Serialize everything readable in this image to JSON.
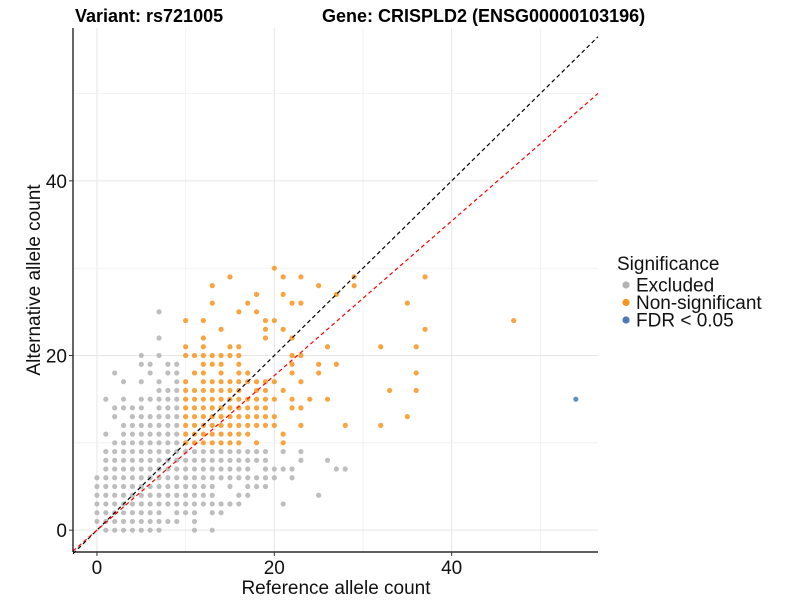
{
  "chart_data": {
    "type": "scatter",
    "title_left": "Variant: rs721005",
    "title_right": "Gene: CRISPLD2 (ENSG00000103196)",
    "xlabel": "Reference allele count",
    "ylabel": "Alternative allele count",
    "xlim": [
      -2.7,
      56.5
    ],
    "ylim": [
      -2.5,
      57.5
    ],
    "xticks": [
      0,
      20,
      40
    ],
    "yticks": [
      0,
      20,
      40
    ],
    "grid": true,
    "reference_lines": [
      {
        "name": "identity",
        "slope": 1.0,
        "intercept": 0,
        "color": "#000000",
        "style": "dashed"
      },
      {
        "name": "expected-ratio",
        "slope": 0.885,
        "intercept": 0,
        "color": "#ff0000",
        "style": "dashed"
      }
    ],
    "legend": {
      "title": "Significance",
      "position": "right",
      "entries": [
        {
          "label": "Excluded",
          "color": "#b3b3b3"
        },
        {
          "label": "Non-significant",
          "color": "#f7941d"
        },
        {
          "label": "FDR < 0.05",
          "color": "#4a7ab5"
        }
      ]
    },
    "series": [
      {
        "name": "Excluded",
        "color": "#b3b3b3",
        "rows": {
          "25": [
            7
          ],
          "22": [
            7
          ],
          "20": [
            5,
            7
          ],
          "19": [
            5,
            6,
            8,
            9
          ],
          "18": [
            2,
            6,
            8,
            9
          ],
          "17": [
            3,
            5,
            7,
            9
          ],
          "16": [
            7,
            8,
            9
          ],
          "15": [
            1,
            3,
            5,
            6,
            7,
            8,
            9
          ],
          "14": [
            2,
            3,
            4,
            5,
            7,
            8,
            9
          ],
          "13": [
            2,
            4,
            5,
            6,
            7,
            8,
            9
          ],
          "12": [
            3,
            4,
            5,
            6,
            7,
            8,
            9
          ],
          "11": [
            1,
            3,
            4,
            5,
            6,
            7,
            8,
            9
          ],
          "10": [
            2,
            3,
            4,
            5,
            6,
            7,
            8,
            9
          ],
          "9": [
            1,
            2,
            3,
            4,
            5,
            6,
            7,
            8,
            9,
            10,
            11,
            12,
            13,
            14,
            15,
            16,
            17,
            18,
            19,
            21,
            23
          ],
          "8": [
            1,
            2,
            3,
            4,
            5,
            6,
            7,
            8,
            9,
            10,
            11,
            12,
            13,
            14,
            15,
            16,
            17,
            18,
            19,
            23,
            26
          ],
          "7": [
            1,
            2,
            3,
            4,
            5,
            6,
            7,
            8,
            9,
            10,
            11,
            12,
            13,
            14,
            15,
            16,
            17,
            19,
            20,
            21,
            22,
            27,
            28
          ],
          "6": [
            0,
            1,
            2,
            3,
            4,
            5,
            6,
            7,
            8,
            9,
            10,
            11,
            12,
            13,
            14,
            15,
            16,
            17,
            18,
            19,
            20,
            22
          ],
          "5": [
            0,
            1,
            2,
            3,
            4,
            5,
            6,
            7,
            8,
            9,
            10,
            11,
            12,
            13,
            15,
            17,
            18,
            19
          ],
          "4": [
            0,
            1,
            2,
            3,
            4,
            5,
            6,
            7,
            8,
            9,
            10,
            11,
            12,
            13,
            16,
            17,
            25
          ],
          "3": [
            0,
            1,
            2,
            3,
            4,
            5,
            6,
            7,
            8,
            9,
            10,
            11,
            12,
            13,
            14,
            15,
            16,
            21
          ],
          "2": [
            0,
            1,
            2,
            3,
            4,
            5,
            6,
            7,
            9,
            10,
            11,
            13,
            14
          ],
          "1": [
            0,
            1,
            2,
            3,
            4,
            5,
            6,
            7,
            8,
            9,
            11
          ],
          "0": [
            1,
            2,
            3,
            4,
            5,
            6,
            7,
            11,
            13
          ]
        }
      },
      {
        "name": "Non-significant",
        "color": "#f7941d",
        "rows": {
          "30": [
            20
          ],
          "29": [
            15,
            21,
            23,
            29,
            37
          ],
          "28": [
            13,
            25,
            29
          ],
          "27": [
            18,
            21,
            27
          ],
          "26": [
            13,
            17,
            22,
            23,
            35
          ],
          "25": [
            16,
            18
          ],
          "24": [
            10,
            12,
            19,
            20,
            47
          ],
          "23": [
            14,
            19,
            21,
            37
          ],
          "22": [
            12,
            19,
            22
          ],
          "21": [
            10,
            12,
            15,
            16,
            26,
            32,
            36
          ],
          "20": [
            10,
            11,
            12,
            13,
            14,
            15,
            16,
            22,
            23
          ],
          "19": [
            12,
            13,
            14,
            16,
            22,
            25,
            27
          ],
          "18": [
            11,
            12,
            14,
            16,
            17,
            22,
            25,
            36
          ],
          "17": [
            10,
            12,
            13,
            14,
            15,
            16,
            17,
            18,
            19,
            20,
            23
          ],
          "16": [
            10,
            11,
            12,
            13,
            14,
            15,
            16,
            18,
            19,
            21,
            33,
            36
          ],
          "15": [
            10,
            11,
            12,
            13,
            14,
            15,
            16,
            17,
            18,
            19,
            20,
            22,
            24,
            26
          ],
          "14": [
            10,
            11,
            12,
            13,
            14,
            15,
            16,
            17,
            18,
            19,
            22,
            23
          ],
          "13": [
            10,
            11,
            12,
            13,
            14,
            15,
            16,
            17,
            18,
            19,
            20,
            35
          ],
          "12": [
            10,
            11,
            12,
            13,
            14,
            15,
            16,
            17,
            18,
            19,
            20,
            23,
            28,
            32
          ],
          "11": [
            10,
            11,
            12,
            13,
            14,
            15,
            16,
            17,
            21
          ],
          "10": [
            10,
            11,
            12,
            13,
            14,
            15,
            16,
            18,
            21
          ]
        }
      },
      {
        "name": "FDR < 0.05",
        "color": "#4a7ab5",
        "rows": {
          "15": [
            54
          ]
        }
      }
    ]
  }
}
